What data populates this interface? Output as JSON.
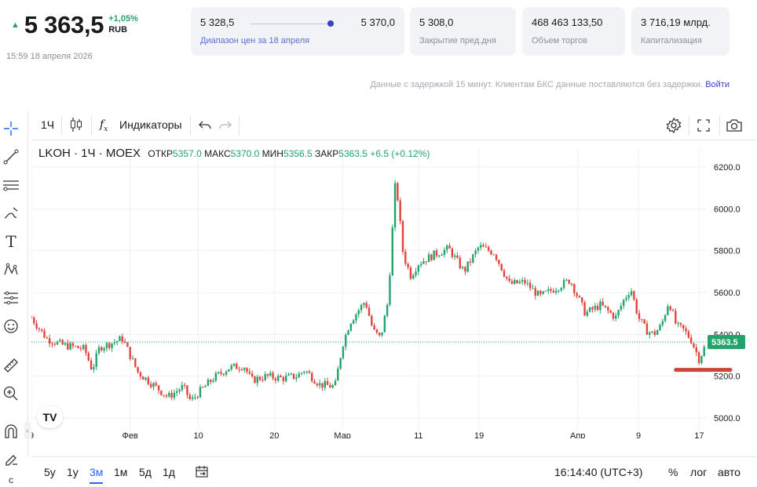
{
  "quote": {
    "price": "5 363,5",
    "change_pct": "+1,05%",
    "currency": "RUB",
    "timestamp": "15:59 18 апреля 2026",
    "up_color": "#22a36b"
  },
  "cards": {
    "range": {
      "low": "5 328,5",
      "high": "5 370,0",
      "label": "Диапазон цен за 18 апреля"
    },
    "prev_close": {
      "value": "5 308,0",
      "label": "Закрытие пред.дня"
    },
    "volume": {
      "value": "468 463 133,50",
      "label": "Объем торгов"
    },
    "cap": {
      "value": "3 716,19 млрд.",
      "label": "Капитализация"
    }
  },
  "delay_note": {
    "text": "Данные с задержкой 15 минут. Клиентам БКС данные поставляются без задержки.",
    "login": "Войти"
  },
  "left_tools": [
    "crosshair-icon",
    "trendline-icon",
    "fib-icon",
    "brush-icon",
    "text-icon",
    "pattern-icon",
    "forecast-icon",
    "emoji-icon",
    "ruler-icon",
    "zoom-icon",
    "magnet-icon",
    "lock-draw-icon"
  ],
  "toolbar": {
    "interval": "1Ч",
    "indicators": "Индикаторы"
  },
  "legend": {
    "symbol": "LKOH · 1Ч · MOEX",
    "open_label": "ОТКР",
    "open": "5357.0",
    "high_label": "МАКС",
    "high": "5370.0",
    "low_label": "МИН",
    "low": "5356.5",
    "close_label": "ЗАКР",
    "close": "5363.5",
    "change": "+6.5 (+0.12%)"
  },
  "chart_data": {
    "type": "candlestick",
    "symbol": "LKOH",
    "interval": "1Ч",
    "yticks": [
      5000,
      5200,
      5400,
      5600,
      5800,
      6000,
      6200
    ],
    "ytick_labels": [
      "5000.0",
      "5200.0",
      "5400.0",
      "5600.0",
      "5800.0",
      "6000.0",
      "6200.0"
    ],
    "ylim": [
      4940,
      6290
    ],
    "xtick_labels": [
      "9",
      "Фев",
      "10",
      "20",
      "Мар",
      "11",
      "19",
      "Апр",
      "9",
      "17"
    ],
    "xlim": [
      "2026-01-19",
      "2026-04-18"
    ],
    "xticks": [
      "2026-01-19",
      "2026-02-01",
      "2026-02-10",
      "2026-02-20",
      "2026-03-01",
      "2026-03-11",
      "2026-03-19",
      "2026-04-01",
      "2026-04-09",
      "2026-04-17"
    ],
    "last_price": 5363.5,
    "last_price_label": "5363.5",
    "up_color": "#22a36b",
    "down_color": "#e0453d",
    "close_path": [
      [
        "2026-01-19",
        5480
      ],
      [
        "2026-01-21",
        5380
      ],
      [
        "2026-01-23",
        5350
      ],
      [
        "2026-01-26",
        5330
      ],
      [
        "2026-01-27",
        5230
      ],
      [
        "2026-01-28",
        5340
      ],
      [
        "2026-01-29",
        5350
      ],
      [
        "2026-01-31",
        5380
      ],
      [
        "2026-02-01",
        5300
      ],
      [
        "2026-02-02",
        5220
      ],
      [
        "2026-02-04",
        5160
      ],
      [
        "2026-02-06",
        5100
      ],
      [
        "2026-02-08",
        5150
      ],
      [
        "2026-02-09",
        5080
      ],
      [
        "2026-02-10",
        5120
      ],
      [
        "2026-02-12",
        5190
      ],
      [
        "2026-02-14",
        5240
      ],
      [
        "2026-02-16",
        5250
      ],
      [
        "2026-02-17",
        5180
      ],
      [
        "2026-02-19",
        5200
      ],
      [
        "2026-02-21",
        5190
      ],
      [
        "2026-02-23",
        5200
      ],
      [
        "2026-02-24",
        5230
      ],
      [
        "2026-02-26",
        5160
      ],
      [
        "2026-02-28",
        5150
      ],
      [
        "2026-03-01",
        5350
      ],
      [
        "2026-03-02",
        5460
      ],
      [
        "2026-03-04",
        5560
      ],
      [
        "2026-03-05",
        5420
      ],
      [
        "2026-03-06",
        5380
      ],
      [
        "2026-03-07",
        5560
      ],
      [
        "2026-03-08",
        6150
      ],
      [
        "2026-03-09",
        5780
      ],
      [
        "2026-03-10",
        5680
      ],
      [
        "2026-03-11",
        5740
      ],
      [
        "2026-03-13",
        5780
      ],
      [
        "2026-03-15",
        5810
      ],
      [
        "2026-03-17",
        5700
      ],
      [
        "2026-03-19",
        5820
      ],
      [
        "2026-03-21",
        5790
      ],
      [
        "2026-03-23",
        5640
      ],
      [
        "2026-03-25",
        5650
      ],
      [
        "2026-03-27",
        5580
      ],
      [
        "2026-03-29",
        5620
      ],
      [
        "2026-03-31",
        5660
      ],
      [
        "2026-04-02",
        5500
      ],
      [
        "2026-04-04",
        5540
      ],
      [
        "2026-04-06",
        5480
      ],
      [
        "2026-04-07",
        5560
      ],
      [
        "2026-04-08",
        5620
      ],
      [
        "2026-04-09",
        5480
      ],
      [
        "2026-04-10",
        5420
      ],
      [
        "2026-04-11",
        5400
      ],
      [
        "2026-04-12",
        5440
      ],
      [
        "2026-04-13",
        5560
      ],
      [
        "2026-04-14",
        5440
      ],
      [
        "2026-04-15",
        5420
      ],
      [
        "2026-04-16",
        5370
      ],
      [
        "2026-04-17",
        5280
      ],
      [
        "2026-04-18",
        5363
      ]
    ],
    "annotation": {
      "type": "horizontal-marker",
      "value": 5230,
      "from": "2026-04-16",
      "to": "2026-04-18",
      "color": "#c9463d"
    }
  },
  "bottom": {
    "ranges": [
      "5у",
      "1у",
      "3м",
      "1м",
      "5д",
      "1д"
    ],
    "active": "3м",
    "time": "16:14:40 (UTC+3)",
    "pct": "%",
    "log": "лог",
    "auto": "авто"
  }
}
